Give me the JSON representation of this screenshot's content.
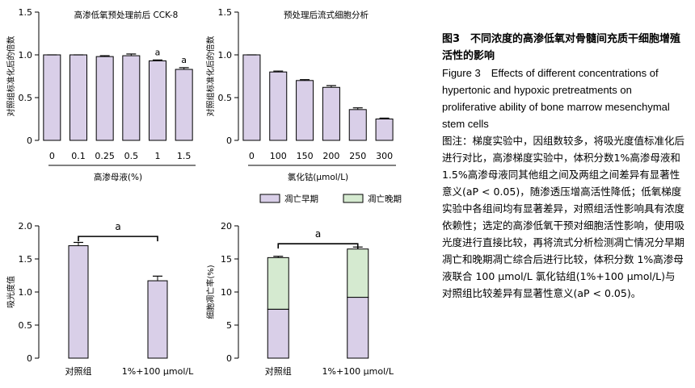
{
  "caption": {
    "title_zh": "图3　不同浓度的高渗低氧对骨髓间充质干细胞增殖活性的影响",
    "title_en": "Figure 3　Effects of different concentrations of hypertonic and hypoxic pretreatments on proliferative ability of bone marrow mesenchymal stem cells",
    "note": "图注：梯度实验中，因组数较多，将吸光度值标准化后进行对比，高渗梯度实验中，体积分数1%高渗母液和 1.5%高渗母液同其他组之间及两组之间差异有显著性意义(aP < 0.05)，随渗透压增高活性降低；低氧梯度实验中各组间均有显著差异，对照组活性影响具有浓度依赖性；选定的高渗低氧干预对细胞活性影响，使用吸光度进行直接比较，再将流式分析检测凋亡情况分早期凋亡和晚期凋亡综合后进行比较，体积分数 1%高渗母液联合 100 μmol/L 氯化钴组(1%+100 μmol/L)与对照组比较差异有显著性意义(aP < 0.05)。"
  },
  "colors": {
    "bar_fill": "#d9cfe8",
    "early_fill": "#d9cfe8",
    "late_fill": "#d5ead0",
    "stroke": "#000000"
  },
  "chart_data": [
    {
      "type": "bar",
      "title": "高渗低氧预处理前后 CCK-8",
      "xlabel": "高渗母液(%)",
      "ylabel": "对照组标准化后的倍数",
      "categories": [
        "0",
        "0.1",
        "0.25",
        "0.5",
        "1",
        "1.5"
      ],
      "values": [
        1.0,
        1.0,
        0.98,
        0.99,
        0.93,
        0.83
      ],
      "errors": [
        0,
        0,
        0.01,
        0.02,
        0.01,
        0.02
      ],
      "annotations": [
        "",
        "",
        "",
        "",
        "a",
        "a"
      ],
      "ylim": [
        0,
        1.5
      ],
      "yticks": [
        "0",
        "0.5",
        "1.0",
        "1.5"
      ]
    },
    {
      "type": "bar",
      "title": "预处理后流式细胞分析",
      "xlabel": "氯化钴(μmol/L)",
      "ylabel": "对照组标准化后的倍数",
      "categories": [
        "0",
        "100",
        "150",
        "200",
        "250",
        "300"
      ],
      "values": [
        1.0,
        0.8,
        0.7,
        0.62,
        0.36,
        0.25
      ],
      "errors": [
        0,
        0.01,
        0.01,
        0.02,
        0.02,
        0.01
      ],
      "ylim": [
        0,
        1.5
      ],
      "yticks": [
        "0",
        "0.5",
        "1.0",
        "1.5"
      ]
    },
    {
      "type": "bar",
      "ylabel": "吸光度值",
      "categories": [
        "对照组",
        "1%+100 μmol/L"
      ],
      "values": [
        1.7,
        1.17
      ],
      "errors": [
        0.05,
        0.07
      ],
      "ylim": [
        0,
        2.0
      ],
      "yticks": [
        "0",
        "0.5",
        "1.0",
        "1.5",
        "2.0"
      ],
      "significance": "a"
    },
    {
      "type": "bar",
      "stacked": true,
      "ylabel": "细胞凋亡率(%)",
      "categories": [
        "对照组",
        "1%+100 μmol/L"
      ],
      "series": [
        {
          "name": "凋亡早期",
          "values": [
            7.4,
            9.2
          ],
          "errors": [
            0.5,
            0.4
          ]
        },
        {
          "name": "凋亡晚期",
          "values": [
            7.8,
            7.3
          ],
          "errors": [
            0.2,
            0.3
          ]
        }
      ],
      "ylim": [
        0,
        20
      ],
      "yticks": [
        "0",
        "5",
        "10",
        "15",
        "20"
      ],
      "legend": "top",
      "significance": "a"
    }
  ]
}
